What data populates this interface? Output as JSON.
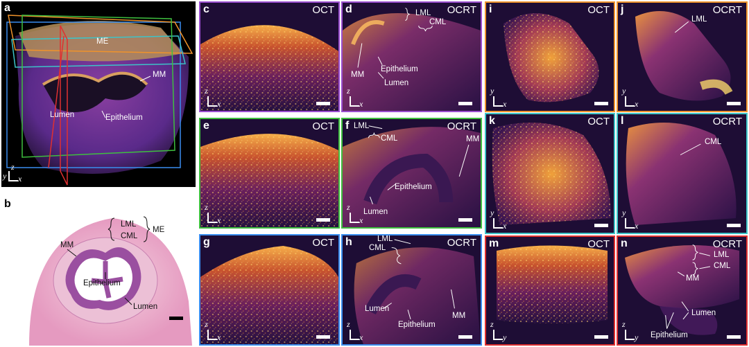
{
  "panels": {
    "a": {
      "letter": "a",
      "labels": {
        "me": "ME",
        "mm": "MM",
        "lumen": "Lumen",
        "epithelium": "Epithelium"
      },
      "axes": {
        "z": "z",
        "y": "y",
        "x": "x"
      }
    },
    "b": {
      "letter": "b",
      "labels": {
        "lml": "LML",
        "cml": "CML",
        "me": "ME",
        "mm": "MM",
        "epithelium": "Epithelium",
        "lumen": "Lumen"
      }
    },
    "c": {
      "letter": "c",
      "mode": "OCT",
      "axes": {
        "v": "z",
        "h": "x"
      }
    },
    "d": {
      "letter": "d",
      "mode": "OCRT",
      "labels": {
        "lml": "LML",
        "cml": "CML",
        "mm": "MM",
        "epithelium": "Epithelium",
        "lumen": "Lumen"
      },
      "axes": {
        "v": "z",
        "h": "x"
      }
    },
    "e": {
      "letter": "e",
      "mode": "OCT",
      "axes": {
        "v": "z",
        "h": "x"
      }
    },
    "f": {
      "letter": "f",
      "mode": "OCRT",
      "labels": {
        "lml": "LML",
        "cml": "CML",
        "mm": "MM",
        "epithelium": "Epithelium",
        "lumen": "Lumen"
      },
      "axes": {
        "v": "z",
        "h": "x"
      }
    },
    "g": {
      "letter": "g",
      "mode": "OCT",
      "axes": {
        "v": "z",
        "h": "x"
      }
    },
    "h": {
      "letter": "h",
      "mode": "OCRT",
      "labels": {
        "lml": "LML",
        "cml": "CML",
        "lumen": "Lumen",
        "epithelium": "Epithelium",
        "mm": "MM"
      },
      "axes": {
        "v": "z",
        "h": "x"
      }
    },
    "i": {
      "letter": "i",
      "mode": "OCT",
      "axes": {
        "v": "y",
        "h": "x"
      }
    },
    "j": {
      "letter": "j",
      "mode": "OCRT",
      "labels": {
        "lml": "LML"
      },
      "axes": {
        "v": "y",
        "h": "x"
      }
    },
    "k": {
      "letter": "k",
      "mode": "OCT",
      "axes": {
        "v": "y",
        "h": "x"
      }
    },
    "l": {
      "letter": "l",
      "mode": "OCRT",
      "labels": {
        "cml": "CML"
      },
      "axes": {
        "v": "y",
        "h": "x"
      }
    },
    "m": {
      "letter": "m",
      "mode": "OCT",
      "axes": {
        "v": "z",
        "h": "y"
      }
    },
    "n": {
      "letter": "n",
      "mode": "OCRT",
      "labels": {
        "lml": "LML",
        "cml": "CML",
        "mm": "MM",
        "lumen": "Lumen",
        "epithelium": "Epithelium"
      },
      "axes": {
        "v": "z",
        "h": "y"
      }
    }
  },
  "colors": {
    "purple_frame": "#9b4fd0",
    "green_frame": "#3fbf3f",
    "blue_frame": "#3a8ef0",
    "orange_frame": "#f0932b",
    "cyan_frame": "#3cc4c8",
    "red_frame": "#e03030"
  }
}
